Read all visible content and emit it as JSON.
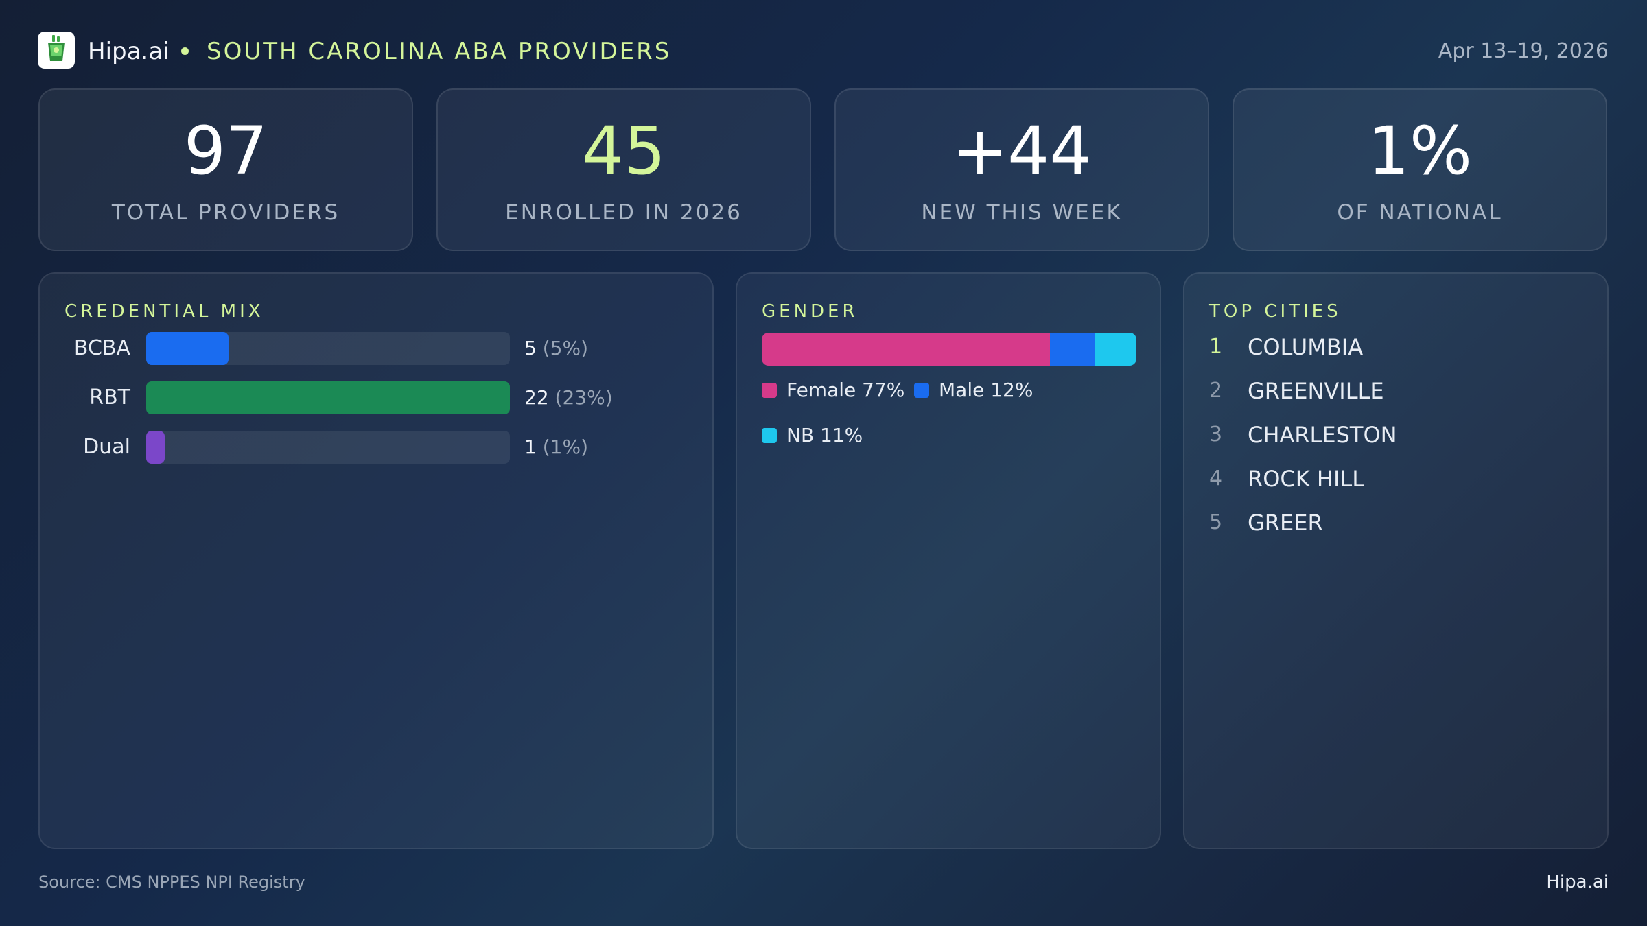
{
  "header": {
    "brand": "Hipa.ai",
    "title": "SOUTH CAROLINA ABA PROVIDERS",
    "date_range": "Apr 13–19, 2026",
    "logo_icon": "cup-icon"
  },
  "kpis": [
    {
      "value": "97",
      "label": "TOTAL PROVIDERS"
    },
    {
      "value": "45",
      "label": "ENROLLED IN 2026"
    },
    {
      "value": "+44",
      "label": "NEW THIS WEEK"
    },
    {
      "value": "1%",
      "label": "OF NATIONAL"
    }
  ],
  "credential_mix": {
    "title": "CREDENTIAL MIX",
    "items": [
      {
        "label": "BCBA",
        "count": "5",
        "pct": "(5%)",
        "color": "#1a6cf0"
      },
      {
        "label": "RBT",
        "count": "22",
        "pct": "(23%)",
        "color": "#1b8a55"
      },
      {
        "label": "Dual",
        "count": "1",
        "pct": "(1%)",
        "color": "#7b47c9"
      }
    ]
  },
  "gender": {
    "title": "GENDER",
    "segments": [
      {
        "label": "Female 77%",
        "color": "#d63a8a"
      },
      {
        "label": "Male 12%",
        "color": "#1a6cf0"
      },
      {
        "label": "NB 11%",
        "color": "#1ec8ee"
      }
    ]
  },
  "top_cities": {
    "title": "TOP CITIES",
    "items": [
      {
        "rank": "1",
        "name": "COLUMBIA"
      },
      {
        "rank": "2",
        "name": "GREENVILLE"
      },
      {
        "rank": "3",
        "name": "CHARLESTON"
      },
      {
        "rank": "4",
        "name": "ROCK HILL"
      },
      {
        "rank": "5",
        "name": "GREER"
      }
    ]
  },
  "footer": {
    "source": "Source: CMS NPPES NPI Registry",
    "brand": "Hipa.ai"
  },
  "chart_data": [
    {
      "type": "bar",
      "title": "CREDENTIAL MIX",
      "categories": [
        "BCBA",
        "RBT",
        "Dual"
      ],
      "values": [
        5,
        22,
        1
      ],
      "percent": [
        5,
        23,
        1
      ],
      "xlim": [
        0,
        22
      ],
      "grid": false
    },
    {
      "type": "bar",
      "title": "GENDER",
      "categories": [
        "Female",
        "Male",
        "NB"
      ],
      "values": [
        77,
        12,
        11
      ],
      "stacked": true,
      "grid": false
    }
  ]
}
